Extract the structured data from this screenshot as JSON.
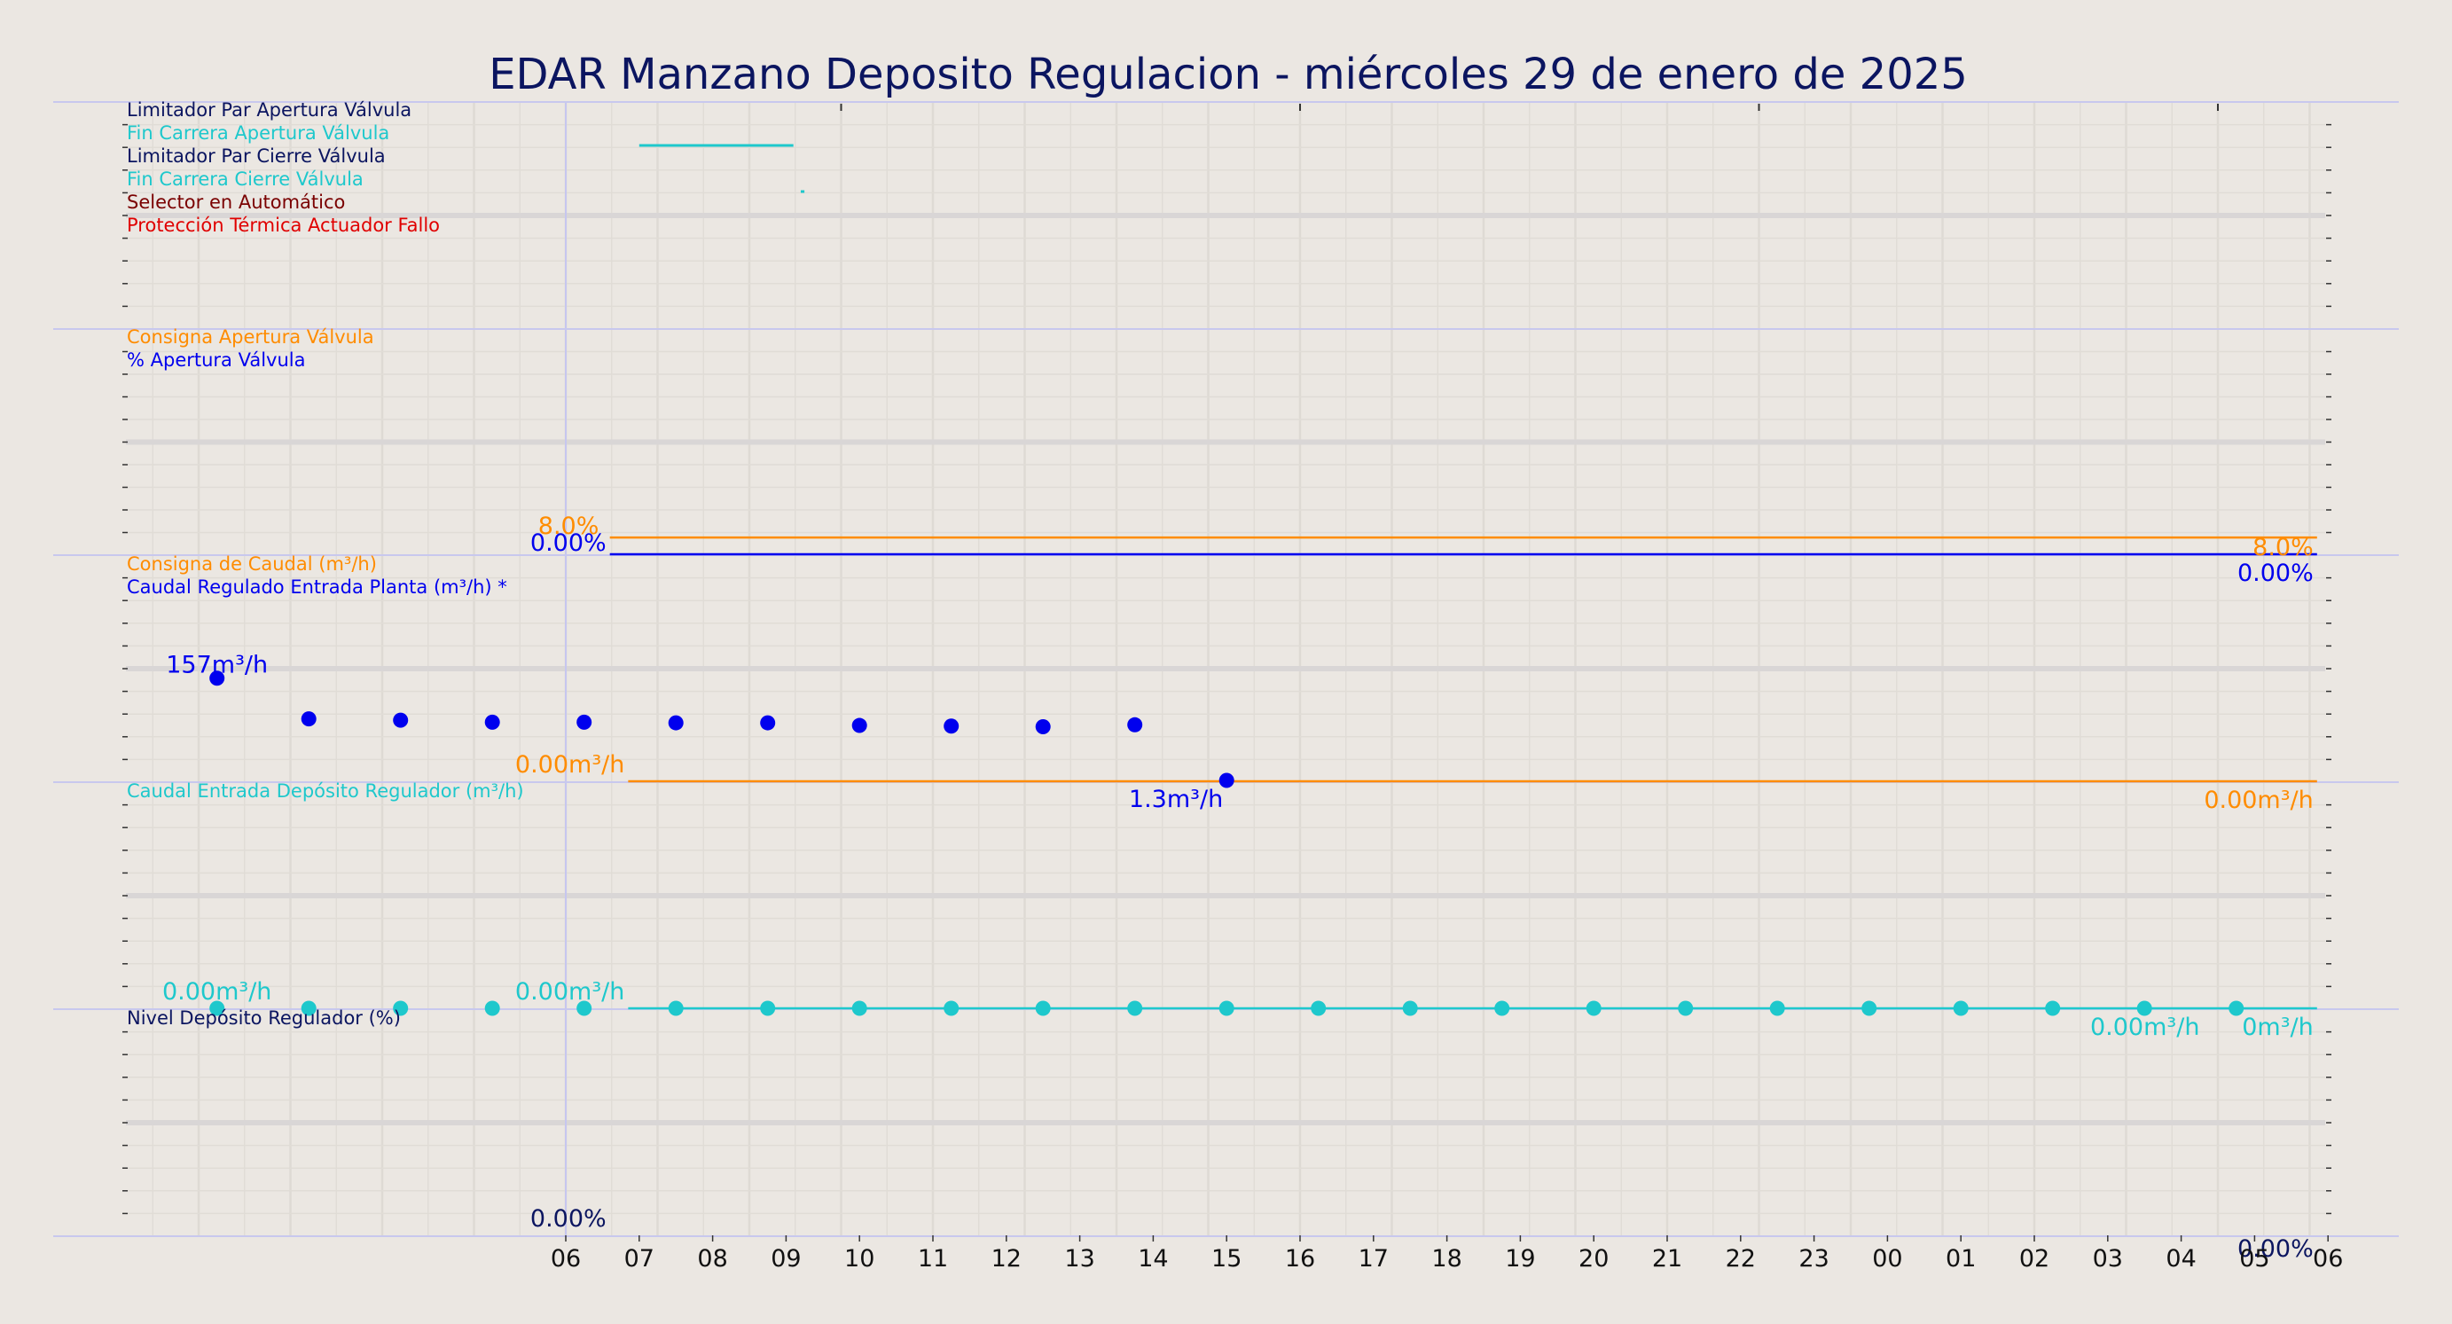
{
  "title": "EDAR Manzano Deposito Regulacion   -   miércoles 29 de enero de 2025",
  "colors": {
    "background": "#ebe7e2",
    "navy": "#0b1560",
    "blue": "#0000ee",
    "cyan": "#1ec8cc",
    "orange": "#ff8c00",
    "red": "#e00000",
    "darkred": "#7a0000",
    "separator": "#c8c8ee"
  },
  "chart_data": {
    "type": "line",
    "x_ticks": [
      "06",
      "07",
      "08",
      "09",
      "10",
      "11",
      "12",
      "13",
      "14",
      "15",
      "16",
      "17",
      "18",
      "19",
      "20",
      "21",
      "22",
      "23",
      "00",
      "01",
      "02",
      "03",
      "04",
      "05",
      "06"
    ],
    "x_range_hours": [
      0,
      24
    ],
    "panels": [
      {
        "series_labels": [
          {
            "name": "Limitador Par Apertura Válvula",
            "color": "#0b1560"
          },
          {
            "name": "Fin Carrera Apertura Válvula",
            "color": "#1ec8cc"
          },
          {
            "name": "Limitador Par Cierre Válvula",
            "color": "#0b1560"
          },
          {
            "name": "Fin Carrera Cierre Válvula",
            "color": "#1ec8cc"
          },
          {
            "name": "Selector en Automático",
            "color": "#7a0000"
          },
          {
            "name": "Protección Térmica Actuador Fallo",
            "color": "#e00000"
          }
        ],
        "events": [
          {
            "series": "Fin Carrera Apertura Válvula",
            "x_start": 1.0,
            "x_end": 3.1
          },
          {
            "series": "Fin Carrera Cierre Válvula",
            "x_start": 3.2,
            "x_end": 3.25
          }
        ]
      },
      {
        "series_labels": [
          {
            "name": "Consigna Apertura Válvula",
            "color": "#ff8c00"
          },
          {
            "name": "% Apertura Válvula",
            "color": "#0000ee"
          }
        ],
        "y_range": [
          0,
          100
        ],
        "series": [
          {
            "name": "Consigna Apertura Válvula",
            "color": "#ff8c00",
            "x": [
              0.6,
              23.85
            ],
            "y": [
              8,
              8
            ]
          },
          {
            "name": "% Apertura Válvula",
            "color": "#0000ee",
            "x": [
              0.6,
              23.85
            ],
            "y": [
              0,
              0
            ]
          }
        ],
        "value_labels": [
          {
            "text": "8.0%",
            "x": 0.5,
            "y": 8,
            "color": "#ff8c00",
            "anchor": "end"
          },
          {
            "text": "0.00%",
            "x": 0.6,
            "y": 0,
            "color": "#0000ee",
            "anchor": "end"
          },
          {
            "text": "8.0%",
            "x": 23.85,
            "y": 8,
            "color": "#ff8c00",
            "anchor": "end"
          },
          {
            "text": "0.00%",
            "x": 23.85,
            "y": 0,
            "color": "#0000ee",
            "anchor": "end"
          }
        ]
      },
      {
        "series_labels": [
          {
            "name": "Consigna de Caudal (m³/h)",
            "color": "#ff8c00"
          },
          {
            "name": "Caudal Regulado Entrada Planta (m³/h) *",
            "color": "#0000ee"
          }
        ],
        "y_range": [
          0,
          320
        ],
        "series": [
          {
            "name": "Consigna de Caudal (m³/h)",
            "color": "#ff8c00",
            "kind": "line",
            "x": [
              0.85,
              23.85
            ],
            "y": [
              0,
              0
            ]
          },
          {
            "name": "Caudal Regulado Entrada Planta (m³/h) *",
            "color": "#0000ee",
            "kind": "scatter",
            "x": [
              -4.75,
              -3.5,
              -2.25,
              -1.0,
              0.25,
              1.5,
              2.75,
              4.0,
              5.25,
              6.5,
              7.75,
              9.0
            ],
            "y": [
              157,
              95,
              93,
              90,
              90,
              89,
              89,
              85,
              84,
              83,
              86,
              1.3
            ]
          }
        ],
        "value_labels": [
          {
            "text": "157m³/h",
            "x": -4.75,
            "y": 157,
            "color": "#0000ee",
            "anchor": "middle"
          },
          {
            "text": "0.00m³/h",
            "x": 0.85,
            "y": 0,
            "color": "#ff8c00",
            "anchor": "end"
          },
          {
            "text": "1.3m³/h",
            "x": 9.0,
            "y": 1.3,
            "color": "#0000ee",
            "anchor": "end"
          },
          {
            "text": "0.00m³/h",
            "x": 23.85,
            "y": 0,
            "color": "#ff8c00",
            "anchor": "end"
          }
        ]
      },
      {
        "series_labels": [
          {
            "name": "Caudal Entrada Depósito Regulador (m³/h)",
            "color": "#1ec8cc"
          }
        ],
        "y_range": [
          0,
          100
        ],
        "series": [
          {
            "name": "Caudal Entrada Depósito Regulador (m³/h)",
            "color": "#1ec8cc",
            "kind": "line",
            "x": [
              0.85,
              23.85
            ],
            "y": [
              0,
              0
            ]
          },
          {
            "name": "Caudal Entrada Depósito Regulador (m³/h)",
            "color": "#1ec8cc",
            "kind": "scatter",
            "x": [
              -4.75,
              -3.5,
              -2.25,
              -1.0,
              0.25,
              1.5,
              2.75,
              4.0,
              5.25,
              6.5,
              7.75,
              9.0,
              10.25,
              11.5,
              12.75,
              14.0,
              15.25,
              16.5,
              17.75,
              19.0,
              20.25,
              21.5,
              22.75
            ],
            "y": [
              0,
              0,
              0,
              0,
              0,
              0,
              0,
              0,
              0,
              0,
              0,
              0,
              0,
              0,
              0,
              0,
              0,
              0,
              0,
              0,
              0,
              0,
              0
            ]
          }
        ],
        "value_labels": [
          {
            "text": "0.00m³/h",
            "x": -4.75,
            "y": 0,
            "color": "#1ec8cc",
            "anchor": "middle"
          },
          {
            "text": "0.00m³/h",
            "x": 0.85,
            "y": 0,
            "color": "#1ec8cc",
            "anchor": "end"
          },
          {
            "text": "0.00m³/h",
            "x": 22.3,
            "y": 0,
            "color": "#1ec8cc",
            "anchor": "end"
          },
          {
            "text": "0m³/h",
            "x": 23.85,
            "y": 0,
            "color": "#1ec8cc",
            "anchor": "end"
          }
        ]
      },
      {
        "series_labels": [
          {
            "name": "Nivel Depósito Regulador (%)",
            "color": "#0b1560"
          }
        ],
        "y_range": [
          0,
          100
        ],
        "series": [],
        "value_labels": [
          {
            "text": "0.00%",
            "x": 0.6,
            "y": 0,
            "color": "#0b1560",
            "anchor": "end"
          },
          {
            "text": "0.00%",
            "x": 23.85,
            "y": 0,
            "color": "#0b1560",
            "anchor": "end"
          }
        ]
      }
    ]
  }
}
